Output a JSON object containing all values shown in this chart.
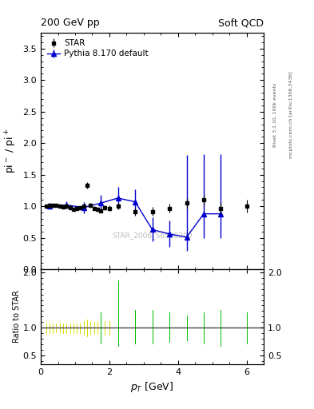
{
  "title_left": "200 GeV pp",
  "title_right": "Soft QCD",
  "ylabel_main": "pi$^-$ / pi$^+$",
  "ylabel_ratio": "Ratio to STAR",
  "xlabel": "$p_T$ [GeV]",
  "right_label_top": "Rivet 3.1.10, 100k events",
  "right_label_bottom": "mcplots.cern.ch [arXiv:1306.3436]",
  "watermark": "STAR_2006_S6500200",
  "ylim_main": [
    0.0,
    3.75
  ],
  "ylim_ratio": [
    0.35,
    2.05
  ],
  "xlim": [
    0.0,
    6.5
  ],
  "star_x": [
    0.15,
    0.25,
    0.35,
    0.45,
    0.55,
    0.65,
    0.75,
    0.85,
    0.95,
    1.05,
    1.15,
    1.25,
    1.35,
    1.45,
    1.55,
    1.65,
    1.75,
    1.85,
    2.0,
    2.25,
    2.75,
    3.25,
    3.75,
    4.25,
    4.75,
    5.25,
    6.0
  ],
  "star_y": [
    1.005,
    1.01,
    1.02,
    1.015,
    1.0,
    0.99,
    1.0,
    0.98,
    0.95,
    0.97,
    0.98,
    1.0,
    1.33,
    1.02,
    0.97,
    0.95,
    0.93,
    0.98,
    0.97,
    1.0,
    0.91,
    0.92,
    0.97,
    1.05,
    1.1,
    0.97,
    1.0
  ],
  "star_yerr": [
    0.02,
    0.02,
    0.02,
    0.02,
    0.02,
    0.02,
    0.02,
    0.02,
    0.02,
    0.02,
    0.02,
    0.02,
    0.05,
    0.03,
    0.03,
    0.03,
    0.03,
    0.04,
    0.04,
    0.05,
    0.06,
    0.07,
    0.07,
    0.08,
    0.08,
    0.1,
    0.1
  ],
  "pythia_x": [
    0.25,
    0.75,
    1.25,
    1.75,
    2.25,
    2.75,
    3.25,
    3.75,
    4.25,
    4.75,
    5.25
  ],
  "pythia_y": [
    1.0,
    1.02,
    0.98,
    1.05,
    1.13,
    1.07,
    0.63,
    0.56,
    0.51,
    0.88,
    0.88
  ],
  "pythia_yerr_lo": [
    0.05,
    0.06,
    0.09,
    0.12,
    0.15,
    0.17,
    0.18,
    0.2,
    0.22,
    0.38,
    0.38
  ],
  "pythia_yerr_hi": [
    0.05,
    0.06,
    0.09,
    0.13,
    0.17,
    0.2,
    0.2,
    0.22,
    1.3,
    0.95,
    0.95
  ],
  "star_color": "#000000",
  "pythia_color": "#0000cc",
  "ratio_yellow_x": [
    0.15,
    0.25,
    0.35,
    0.45,
    0.55,
    0.65,
    0.75,
    0.85,
    0.95,
    1.05,
    1.15,
    1.25,
    1.35,
    1.45,
    1.55,
    1.65,
    1.75,
    1.85,
    2.0,
    2.25,
    2.75,
    3.25,
    3.75,
    4.25,
    4.75,
    5.25,
    6.0
  ],
  "ratio_yellow_lo": [
    0.9,
    0.9,
    0.9,
    0.92,
    0.92,
    0.9,
    0.9,
    0.9,
    0.9,
    0.9,
    0.9,
    0.88,
    0.85,
    0.88,
    0.9,
    0.9,
    0.9,
    0.88,
    0.88,
    0.85,
    0.82,
    0.82,
    0.85,
    0.88,
    0.88,
    0.85,
    0.85
  ],
  "ratio_yellow_hi": [
    1.08,
    1.08,
    1.08,
    1.08,
    1.08,
    1.08,
    1.08,
    1.08,
    1.08,
    1.08,
    1.08,
    1.12,
    1.15,
    1.12,
    1.1,
    1.1,
    1.1,
    1.12,
    1.12,
    1.15,
    1.18,
    1.18,
    1.15,
    1.12,
    1.12,
    1.15,
    1.15
  ],
  "ratio_green_x": [
    1.75,
    2.25,
    2.75,
    3.25,
    3.75,
    4.25,
    4.75,
    5.25,
    6.0
  ],
  "ratio_green_lo": [
    0.72,
    0.68,
    0.72,
    0.72,
    0.75,
    0.78,
    0.72,
    0.68,
    0.72
  ],
  "ratio_green_hi": [
    1.28,
    1.85,
    1.32,
    1.32,
    1.28,
    1.22,
    1.28,
    1.32,
    1.28
  ]
}
